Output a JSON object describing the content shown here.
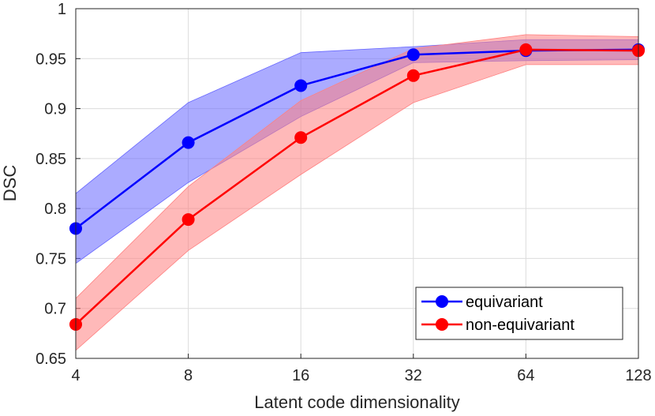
{
  "chart_data": {
    "type": "line",
    "xlabel": "Latent code dimensionality",
    "ylabel": "DSC",
    "x_scale": "log2",
    "categories": [
      "4",
      "8",
      "16",
      "32",
      "64",
      "128"
    ],
    "x": [
      4,
      8,
      16,
      32,
      64,
      128
    ],
    "ylim": [
      0.65,
      1
    ],
    "yticks": [
      "0.65",
      "0.7",
      "0.75",
      "0.8",
      "0.85",
      "0.9",
      "0.95",
      "1"
    ],
    "ytick_values": [
      0.65,
      0.7,
      0.75,
      0.8,
      0.85,
      0.9,
      0.95,
      1
    ],
    "grid": true,
    "legend_position": "bottom-right",
    "series": [
      {
        "name": "equivariant",
        "color": "#0000ff",
        "band_color": "#6666ff",
        "values": [
          0.78,
          0.866,
          0.923,
          0.954,
          0.958,
          0.959
        ],
        "upper": [
          0.815,
          0.906,
          0.956,
          0.962,
          0.969,
          0.969
        ],
        "lower": [
          0.745,
          0.826,
          0.892,
          0.946,
          0.948,
          0.949
        ]
      },
      {
        "name": "non-equivariant",
        "color": "#ff0000",
        "band_color": "#ff8080",
        "values": [
          0.684,
          0.789,
          0.871,
          0.933,
          0.959,
          0.958
        ],
        "upper": [
          0.71,
          0.822,
          0.908,
          0.96,
          0.974,
          0.972
        ],
        "lower": [
          0.658,
          0.758,
          0.834,
          0.906,
          0.944,
          0.944
        ]
      }
    ]
  }
}
